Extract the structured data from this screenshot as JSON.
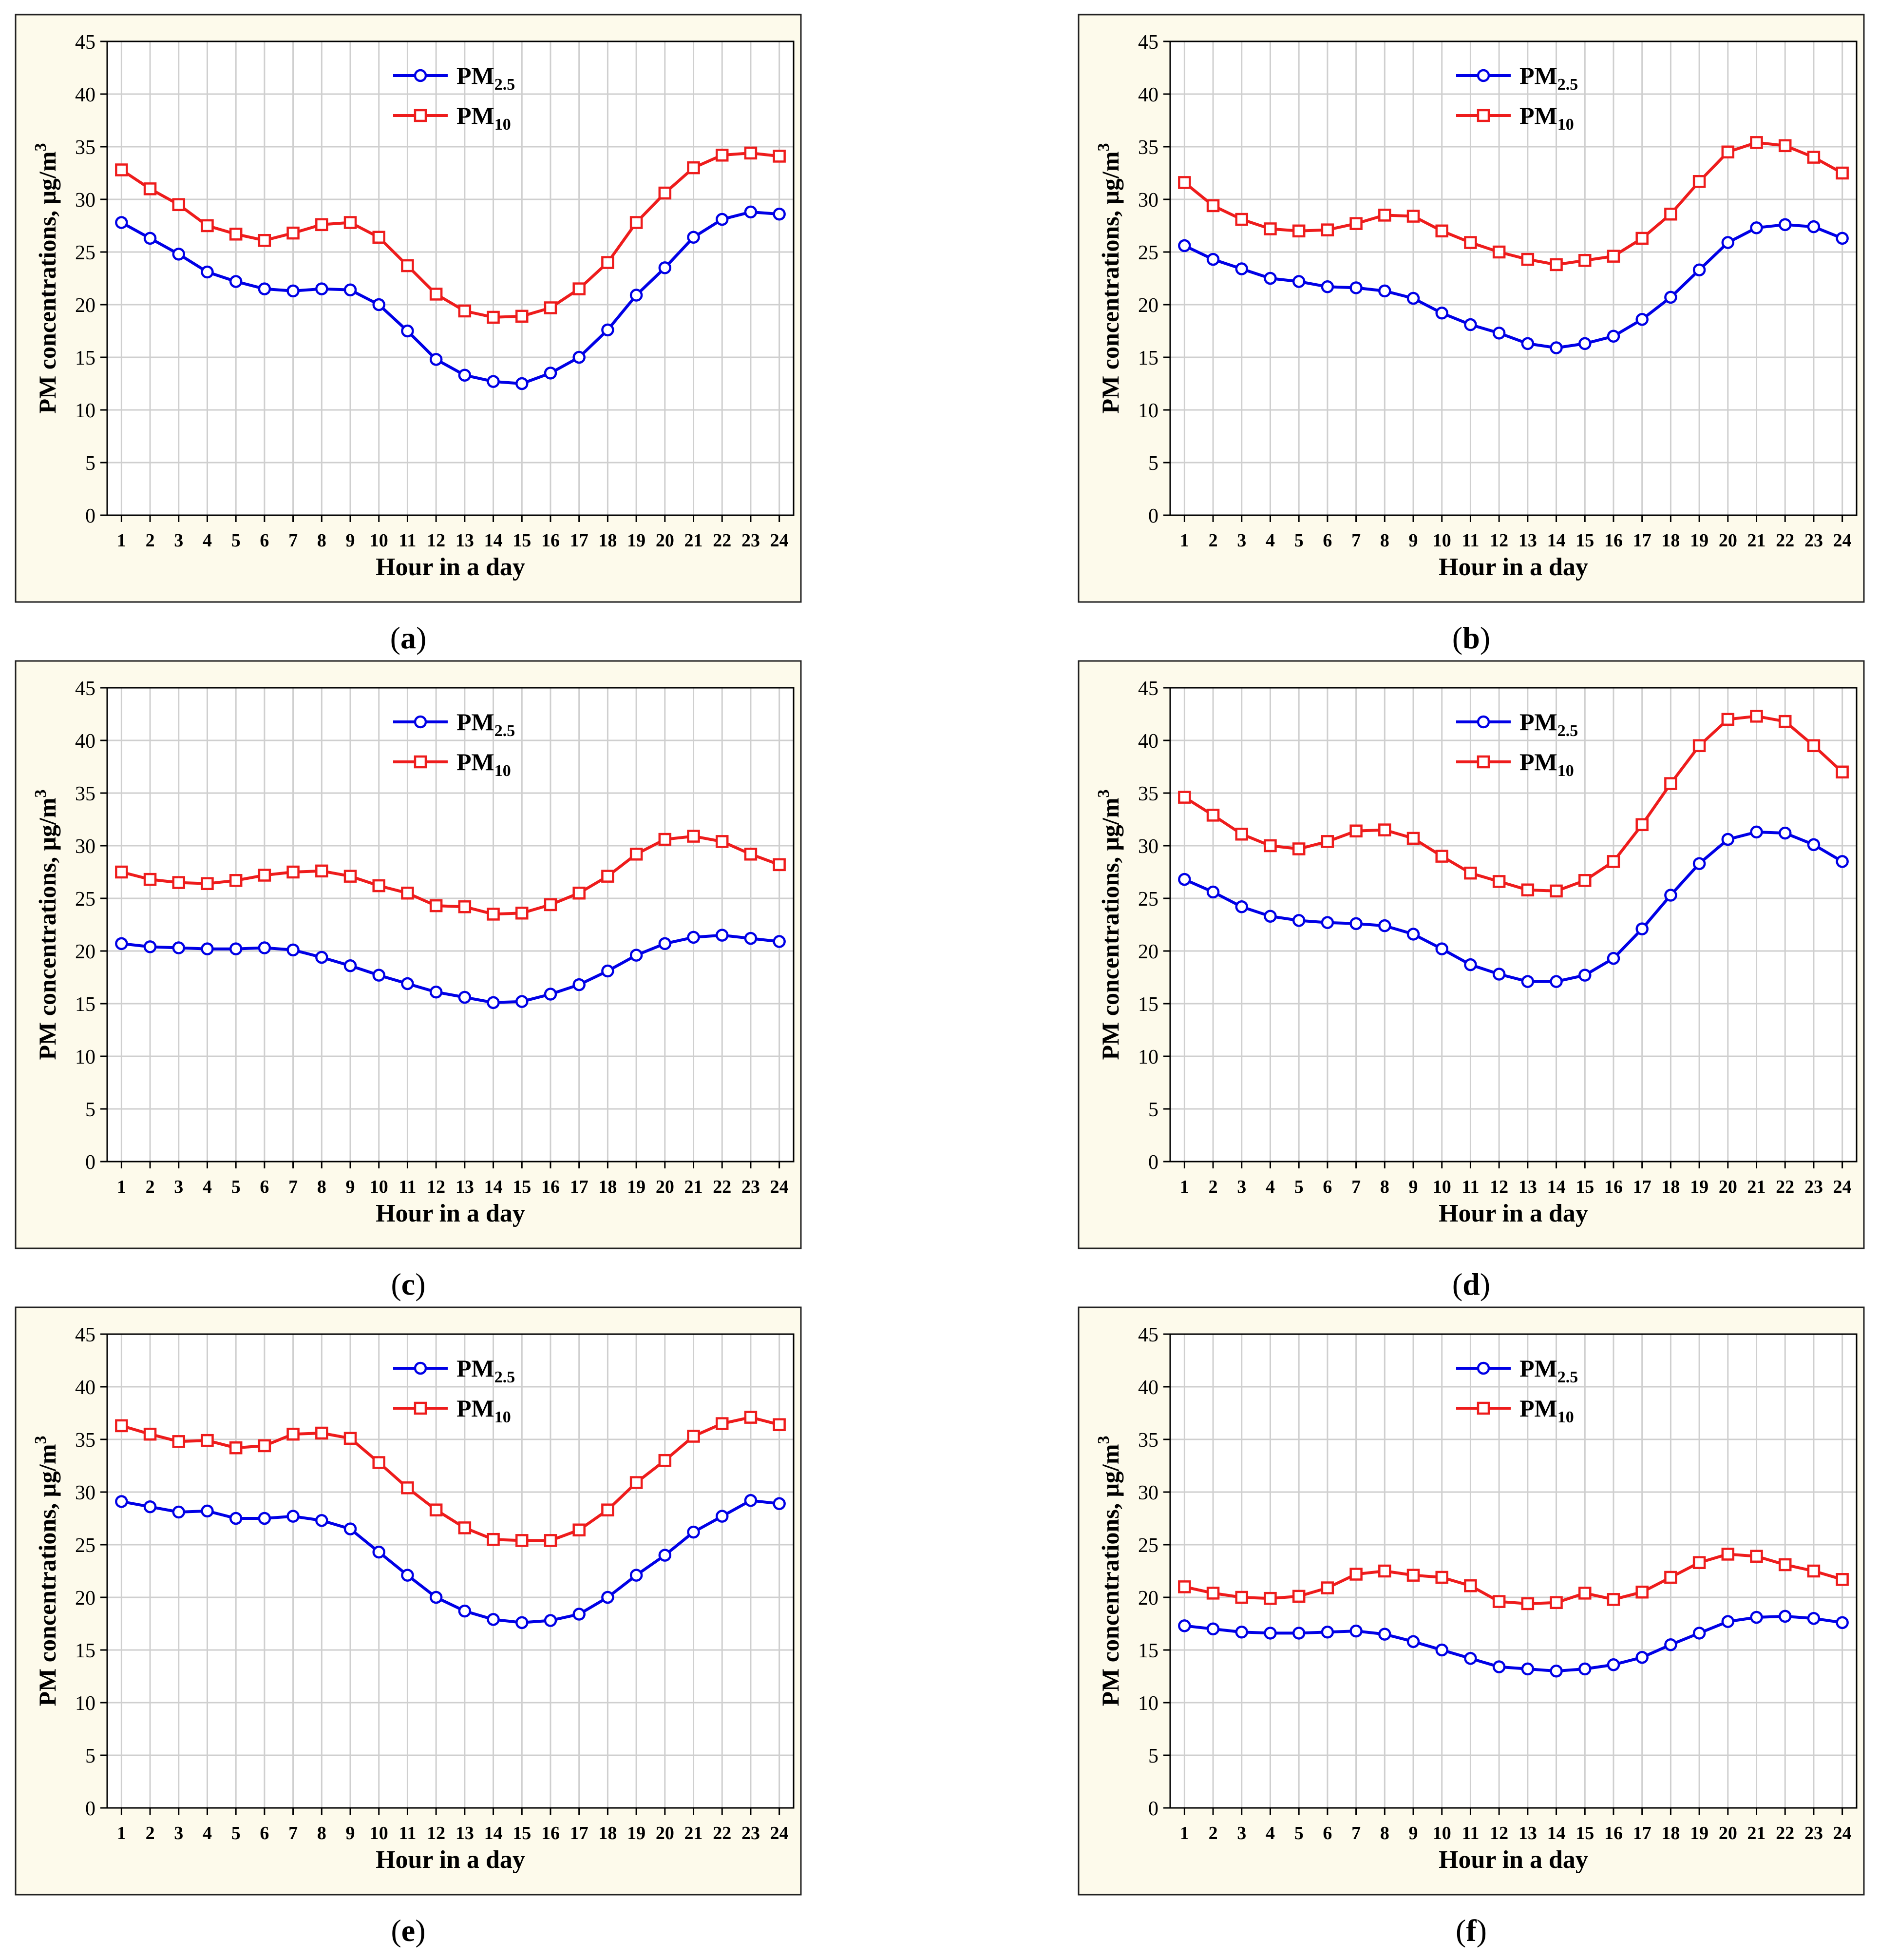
{
  "figure": {
    "chart_background": "#fdfaeb",
    "grid_color": "#cfcfcf",
    "series_colors": {
      "pm25": "#0000e6",
      "pm10": "#ee1c1c"
    }
  },
  "chart_data": [
    {
      "type": "line",
      "panel_label": "(a)",
      "letter": "a",
      "xlabel": "Hour in a day",
      "ylabel": "PM concentrations, μg/m3",
      "ylabel_main": "PM concentrations, μg/m",
      "ylabel_sup": "3",
      "x": [
        1,
        2,
        3,
        4,
        5,
        6,
        7,
        8,
        9,
        10,
        11,
        12,
        13,
        14,
        15,
        16,
        17,
        18,
        19,
        20,
        21,
        22,
        23,
        24
      ],
      "ylim": [
        0,
        45
      ],
      "yticks": [
        0,
        5,
        10,
        15,
        20,
        25,
        30,
        35,
        40,
        45
      ],
      "legend_position": "top-center",
      "series": [
        {
          "name": "PM2.5",
          "base": "PM",
          "sub": "2.5",
          "marker": "circle",
          "values": [
            27.8,
            26.3,
            24.8,
            23.1,
            22.2,
            21.5,
            21.3,
            21.5,
            21.4,
            20.0,
            17.5,
            14.8,
            13.3,
            12.7,
            12.5,
            13.5,
            15.0,
            17.6,
            20.9,
            23.5,
            26.4,
            28.1,
            28.8,
            28.6
          ]
        },
        {
          "name": "PM10",
          "base": "PM",
          "sub": "10",
          "marker": "square",
          "values": [
            32.8,
            31.0,
            29.5,
            27.5,
            26.7,
            26.1,
            26.8,
            27.6,
            27.8,
            26.4,
            23.7,
            21.0,
            19.4,
            18.8,
            18.9,
            19.7,
            21.5,
            24.0,
            27.8,
            30.6,
            33.0,
            34.2,
            34.4,
            34.1
          ]
        }
      ]
    },
    {
      "type": "line",
      "panel_label": "(b)",
      "letter": "b",
      "xlabel": "Hour in a day",
      "ylabel": "PM concentrations, μg/m3",
      "ylabel_main": "PM concentrations, μg/m",
      "ylabel_sup": "3",
      "x": [
        1,
        2,
        3,
        4,
        5,
        6,
        7,
        8,
        9,
        10,
        11,
        12,
        13,
        14,
        15,
        16,
        17,
        18,
        19,
        20,
        21,
        22,
        23,
        24
      ],
      "ylim": [
        0,
        45
      ],
      "yticks": [
        0,
        5,
        10,
        15,
        20,
        25,
        30,
        35,
        40,
        45
      ],
      "legend_position": "top-center",
      "series": [
        {
          "name": "PM2.5",
          "base": "PM",
          "sub": "2.5",
          "marker": "circle",
          "values": [
            25.6,
            24.3,
            23.4,
            22.5,
            22.2,
            21.7,
            21.6,
            21.3,
            20.6,
            19.2,
            18.1,
            17.3,
            16.3,
            15.9,
            16.3,
            17.0,
            18.6,
            20.7,
            23.3,
            25.9,
            27.3,
            27.6,
            27.4,
            26.3
          ]
        },
        {
          "name": "PM10",
          "base": "PM",
          "sub": "10",
          "marker": "square",
          "values": [
            31.6,
            29.4,
            28.1,
            27.2,
            27.0,
            27.1,
            27.7,
            28.5,
            28.4,
            27.0,
            25.9,
            25.0,
            24.3,
            23.8,
            24.2,
            24.6,
            26.3,
            28.6,
            31.7,
            34.5,
            35.4,
            35.1,
            34.0,
            32.5
          ]
        }
      ]
    },
    {
      "type": "line",
      "panel_label": "(c)",
      "letter": "c",
      "xlabel": "Hour in a day",
      "ylabel": "PM concentrations, μg/m3",
      "ylabel_main": "PM concentrations, μg/m",
      "ylabel_sup": "3",
      "x": [
        1,
        2,
        3,
        4,
        5,
        6,
        7,
        8,
        9,
        10,
        11,
        12,
        13,
        14,
        15,
        16,
        17,
        18,
        19,
        20,
        21,
        22,
        23,
        24
      ],
      "ylim": [
        0,
        45
      ],
      "yticks": [
        0,
        5,
        10,
        15,
        20,
        25,
        30,
        35,
        40,
        45
      ],
      "legend_position": "top-center",
      "series": [
        {
          "name": "PM2.5",
          "base": "PM",
          "sub": "2.5",
          "marker": "circle",
          "values": [
            20.7,
            20.4,
            20.3,
            20.2,
            20.2,
            20.3,
            20.1,
            19.4,
            18.6,
            17.7,
            16.9,
            16.1,
            15.6,
            15.1,
            15.2,
            15.9,
            16.8,
            18.1,
            19.6,
            20.7,
            21.3,
            21.5,
            21.2,
            20.9
          ]
        },
        {
          "name": "PM10",
          "base": "PM",
          "sub": "10",
          "marker": "square",
          "values": [
            27.5,
            26.8,
            26.5,
            26.4,
            26.7,
            27.2,
            27.5,
            27.6,
            27.1,
            26.2,
            25.5,
            24.3,
            24.2,
            23.5,
            23.6,
            24.4,
            25.5,
            27.1,
            29.2,
            30.6,
            30.9,
            30.4,
            29.2,
            28.2
          ]
        }
      ]
    },
    {
      "type": "line",
      "panel_label": "(d)",
      "letter": "d",
      "xlabel": "Hour in a day",
      "ylabel": "PM concentrations, μg/m3",
      "ylabel_main": "PM concentrations, μg/m",
      "ylabel_sup": "3",
      "x": [
        1,
        2,
        3,
        4,
        5,
        6,
        7,
        8,
        9,
        10,
        11,
        12,
        13,
        14,
        15,
        16,
        17,
        18,
        19,
        20,
        21,
        22,
        23,
        24
      ],
      "ylim": [
        0,
        45
      ],
      "yticks": [
        0,
        5,
        10,
        15,
        20,
        25,
        30,
        35,
        40,
        45
      ],
      "legend_position": "top-center",
      "series": [
        {
          "name": "PM2.5",
          "base": "PM",
          "sub": "2.5",
          "marker": "circle",
          "values": [
            26.8,
            25.6,
            24.2,
            23.3,
            22.9,
            22.7,
            22.6,
            22.4,
            21.6,
            20.2,
            18.7,
            17.8,
            17.1,
            17.1,
            17.7,
            19.3,
            22.1,
            25.3,
            28.3,
            30.6,
            31.3,
            31.2,
            30.1,
            28.5
          ]
        },
        {
          "name": "PM10",
          "base": "PM",
          "sub": "10",
          "marker": "square",
          "values": [
            34.6,
            32.9,
            31.1,
            30.0,
            29.7,
            30.4,
            31.4,
            31.5,
            30.7,
            29.0,
            27.4,
            26.6,
            25.8,
            25.7,
            26.7,
            28.5,
            32.0,
            35.9,
            39.5,
            42.0,
            42.3,
            41.8,
            39.5,
            37.0
          ]
        }
      ]
    },
    {
      "type": "line",
      "panel_label": "(e)",
      "letter": "e",
      "xlabel": "Hour in a day",
      "ylabel": "PM concentrations, μg/m3",
      "ylabel_main": "PM concentrations, μg/m",
      "ylabel_sup": "3",
      "x": [
        1,
        2,
        3,
        4,
        5,
        6,
        7,
        8,
        9,
        10,
        11,
        12,
        13,
        14,
        15,
        16,
        17,
        18,
        19,
        20,
        21,
        22,
        23,
        24
      ],
      "ylim": [
        0,
        45
      ],
      "yticks": [
        0,
        5,
        10,
        15,
        20,
        25,
        30,
        35,
        40,
        45
      ],
      "legend_position": "top-center",
      "series": [
        {
          "name": "PM2.5",
          "base": "PM",
          "sub": "2.5",
          "marker": "circle",
          "values": [
            29.1,
            28.6,
            28.1,
            28.2,
            27.5,
            27.5,
            27.7,
            27.3,
            26.5,
            24.3,
            22.1,
            20.0,
            18.7,
            17.9,
            17.6,
            17.8,
            18.4,
            20.0,
            22.1,
            24.0,
            26.2,
            27.7,
            29.2,
            28.9
          ]
        },
        {
          "name": "PM10",
          "base": "PM",
          "sub": "10",
          "marker": "square",
          "values": [
            36.3,
            35.5,
            34.8,
            34.9,
            34.2,
            34.4,
            35.5,
            35.6,
            35.1,
            32.8,
            30.4,
            28.3,
            26.6,
            25.5,
            25.4,
            25.4,
            26.4,
            28.3,
            30.9,
            33.0,
            35.3,
            36.5,
            37.1,
            36.4
          ]
        }
      ]
    },
    {
      "type": "line",
      "panel_label": "(f)",
      "letter": "f",
      "xlabel": "Hour in a day",
      "ylabel": "PM concentrations, μg/m3",
      "ylabel_main": "PM concentrations, μg/m",
      "ylabel_sup": "3",
      "x": [
        1,
        2,
        3,
        4,
        5,
        6,
        7,
        8,
        9,
        10,
        11,
        12,
        13,
        14,
        15,
        16,
        17,
        18,
        19,
        20,
        21,
        22,
        23,
        24
      ],
      "ylim": [
        0,
        45
      ],
      "yticks": [
        0,
        5,
        10,
        15,
        20,
        25,
        30,
        35,
        40,
        45
      ],
      "legend_position": "top-center",
      "series": [
        {
          "name": "PM2.5",
          "base": "PM",
          "sub": "2.5",
          "marker": "circle",
          "values": [
            17.3,
            17.0,
            16.7,
            16.6,
            16.6,
            16.7,
            16.8,
            16.5,
            15.8,
            15.0,
            14.2,
            13.4,
            13.2,
            13.0,
            13.2,
            13.6,
            14.3,
            15.5,
            16.6,
            17.7,
            18.1,
            18.2,
            18.0,
            17.6
          ]
        },
        {
          "name": "PM10",
          "base": "PM",
          "sub": "10",
          "marker": "square",
          "values": [
            21.0,
            20.4,
            20.0,
            19.9,
            20.1,
            20.9,
            22.2,
            22.5,
            22.1,
            21.9,
            21.1,
            19.6,
            19.4,
            19.5,
            20.4,
            19.8,
            20.5,
            21.9,
            23.3,
            24.1,
            23.9,
            23.1,
            22.5,
            21.7
          ]
        }
      ]
    }
  ]
}
